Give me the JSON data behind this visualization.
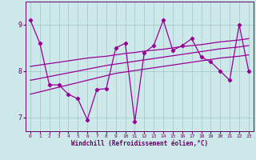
{
  "xlabel": "Windchill (Refroidissement éolien,°C)",
  "ylabel": "",
  "bg_color": "#cce8e8",
  "line_color": "#990099",
  "grid_color": "#aacccc",
  "text_color": "#660066",
  "xlim": [
    -0.5,
    23.5
  ],
  "ylim": [
    6.7,
    9.5
  ],
  "yticks": [
    7,
    8,
    9
  ],
  "xticks": [
    0,
    1,
    2,
    3,
    4,
    5,
    6,
    7,
    8,
    9,
    10,
    11,
    12,
    13,
    14,
    15,
    16,
    17,
    18,
    19,
    20,
    21,
    22,
    23
  ],
  "data_x": [
    0,
    1,
    2,
    3,
    4,
    5,
    6,
    7,
    8,
    9,
    10,
    11,
    12,
    13,
    14,
    15,
    16,
    17,
    18,
    19,
    20,
    21,
    22,
    23
  ],
  "data_y": [
    9.1,
    8.6,
    7.7,
    7.7,
    7.5,
    7.4,
    6.95,
    7.6,
    7.62,
    8.5,
    8.6,
    6.9,
    8.4,
    8.55,
    9.1,
    8.45,
    8.55,
    8.7,
    8.3,
    8.2,
    8.0,
    7.8,
    9.0,
    8.0
  ],
  "reg_y": [
    7.8,
    7.84,
    7.88,
    7.92,
    7.96,
    8.0,
    8.04,
    8.08,
    8.12,
    8.15,
    8.18,
    8.21,
    8.24,
    8.27,
    8.3,
    8.33,
    8.36,
    8.39,
    8.42,
    8.45,
    8.48,
    8.5,
    8.52,
    8.55
  ],
  "upper_y": [
    8.1,
    8.13,
    8.16,
    8.19,
    8.22,
    8.25,
    8.28,
    8.3,
    8.32,
    8.35,
    8.38,
    8.4,
    8.43,
    8.45,
    8.47,
    8.5,
    8.53,
    8.55,
    8.57,
    8.6,
    8.63,
    8.65,
    8.67,
    8.7
  ],
  "lower_y": [
    7.5,
    7.55,
    7.6,
    7.65,
    7.7,
    7.75,
    7.8,
    7.85,
    7.9,
    7.95,
    7.98,
    8.01,
    8.04,
    8.07,
    8.1,
    8.13,
    8.16,
    8.19,
    8.22,
    8.25,
    8.28,
    8.3,
    8.32,
    8.35
  ]
}
